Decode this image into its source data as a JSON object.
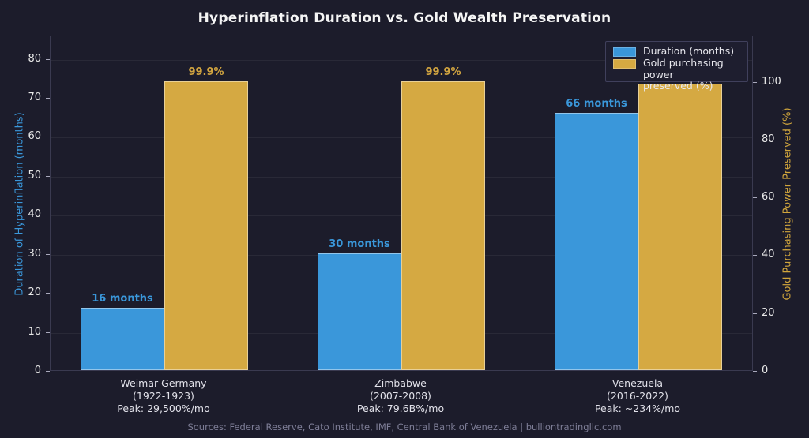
{
  "title": "Hyperinflation Duration vs. Gold Wealth Preservation",
  "colors": {
    "background": "#1c1c2b",
    "duration_blue": "#3a97da",
    "gold": "#d5a942",
    "left_axis_text": "#3a97da",
    "right_axis_text": "#d0a53c",
    "tick_text": "#e8e8e8",
    "footer_text": "#7e7e97"
  },
  "legend": {
    "items": [
      {
        "label": "Duration (months)",
        "color": "#3a97da"
      },
      {
        "label": "Gold purchasing power\npreserved (%)",
        "color": "#d5a942"
      }
    ]
  },
  "footer": {
    "text": "Sources: Federal Reserve, Cato Institute, IMF, Central Bank of Venezuela  |  bulliontradingllc.com"
  },
  "chart_data": {
    "type": "bar",
    "title": "Hyperinflation Duration vs. Gold Wealth Preservation",
    "categories": [
      {
        "name": "Weimar Germany",
        "years": "(1922-1923)",
        "peak": "Peak: 29,500%/mo"
      },
      {
        "name": "Zimbabwe",
        "years": "(2007-2008)",
        "peak": "Peak: 79.6B%/mo"
      },
      {
        "name": "Venezuela",
        "years": "(2016-2022)",
        "peak": "Peak: ~234%/mo"
      }
    ],
    "series": [
      {
        "name": "Duration (months)",
        "axis": "left",
        "color": "#3a97da",
        "values": [
          16,
          30,
          66
        ],
        "labels": [
          "16 months",
          "30 months",
          "66 months"
        ]
      },
      {
        "name": "Gold purchasing power preserved (%)",
        "axis": "right",
        "color": "#d5a942",
        "values": [
          99.9,
          99.9,
          99.2
        ],
        "labels": [
          "99.9%",
          "99.9%",
          null
        ]
      }
    ],
    "axes": {
      "left": {
        "label": "Duration of Hyperinflation (months)",
        "ticks": [
          0,
          10,
          20,
          30,
          40,
          50,
          60,
          70,
          80
        ],
        "min": 0,
        "max": 86
      },
      "right": {
        "label": "Gold Purchasing Power Preserved (%)",
        "ticks": [
          0,
          20,
          40,
          60,
          80,
          100
        ],
        "min": 0,
        "max": 116
      }
    },
    "legend_position": "upper right",
    "grid": "horizontal-faint"
  }
}
